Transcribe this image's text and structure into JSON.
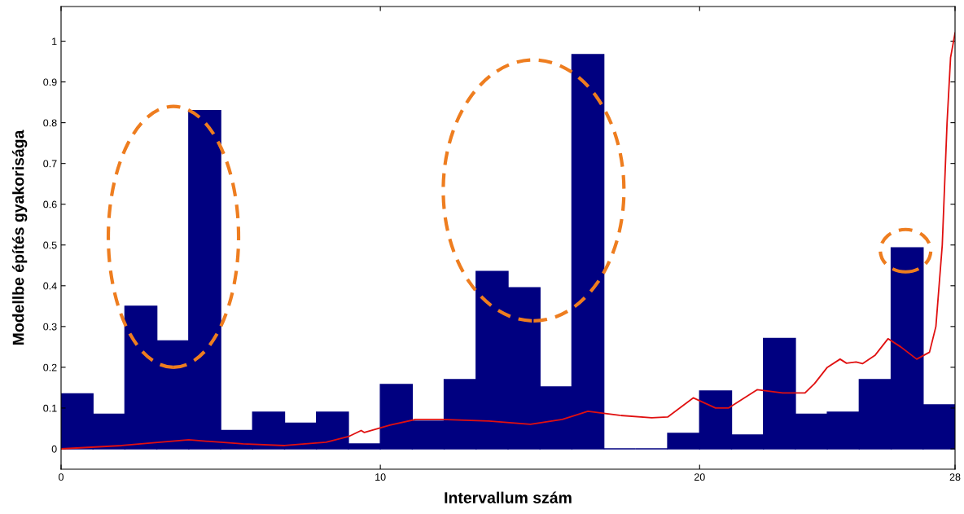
{
  "chart_data": {
    "type": "histogram",
    "xlabel": "Intervallum szám",
    "ylabel": "Modellbe építés gyakorisága",
    "bins": [
      0,
      1,
      2,
      3,
      4,
      5,
      6,
      7,
      8,
      9,
      10,
      11,
      12,
      13,
      14,
      15,
      16,
      17,
      18,
      19,
      20,
      21,
      22,
      23,
      24,
      25,
      26,
      27,
      28
    ],
    "values": [
      0.135,
      0.085,
      0.35,
      0.265,
      0.83,
      0.045,
      0.09,
      0.063,
      0.09,
      0.012,
      0.158,
      0.068,
      0.17,
      0.435,
      0.395,
      0.152,
      0.967,
      0,
      0,
      0.038,
      0.142,
      0.034,
      0.271,
      0.085,
      0.09,
      0.17,
      0.493,
      0.108
    ],
    "color": "#000080",
    "series": [
      {
        "type": "line",
        "color": "#e01010",
        "x": [
          0,
          1.9,
          4,
          5.7,
          7,
          8.3,
          9,
          9.4,
          9.5,
          10.3,
          11.1,
          11.9,
          13.4,
          14.7,
          15.7,
          16.5,
          17.5,
          18.5,
          19,
          19.8,
          20.5,
          20.9,
          21.8,
          22.6,
          23.3,
          23.6,
          24,
          24.4,
          24.6,
          24.9,
          25.1,
          25.5,
          25.9,
          26.3,
          26.8,
          27.2,
          27.4,
          27.6,
          27.75,
          27.86,
          28
        ],
        "values": [
          0,
          0.008,
          0.022,
          0.012,
          0.008,
          0.016,
          0.03,
          0.045,
          0.04,
          0.058,
          0.072,
          0.072,
          0.068,
          0.06,
          0.072,
          0.092,
          0.082,
          0.076,
          0.078,
          0.125,
          0.1,
          0.1,
          0.145,
          0.137,
          0.137,
          0.16,
          0.2,
          0.22,
          0.21,
          0.213,
          0.209,
          0.23,
          0.27,
          0.25,
          0.22,
          0.237,
          0.3,
          0.5,
          0.8,
          0.96,
          1.02
        ]
      }
    ],
    "xlim": [
      0,
      28
    ],
    "xticks": [
      0,
      10,
      20,
      28
    ],
    "ylim": [
      -0.05,
      1.085
    ],
    "yticks": [
      0,
      0.1,
      0.2,
      0.3,
      0.4,
      0.5,
      0.6,
      0.7,
      0.8,
      0.9,
      1
    ],
    "grid": false
  }
}
